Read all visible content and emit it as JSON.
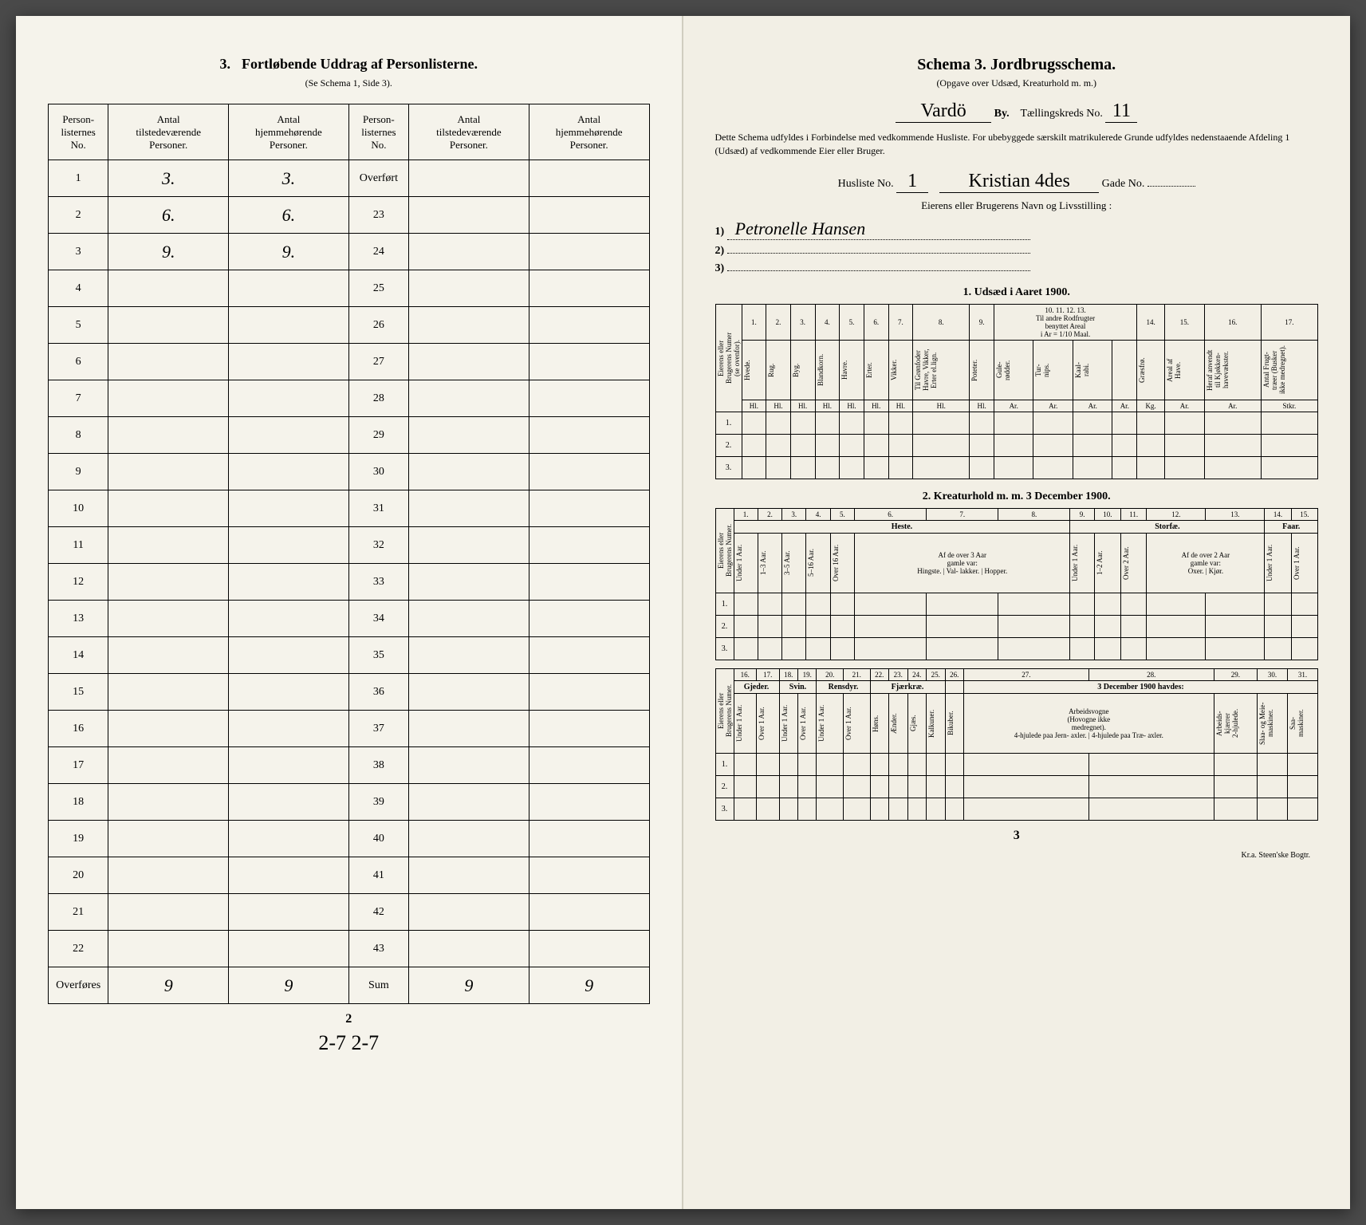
{
  "left": {
    "title_num": "3.",
    "title_text": "Fortløbende Uddrag af Personlisterne.",
    "subtitle": "(Se Schema 1, Side 3).",
    "headers": {
      "col1": "Person-\nlisternes\nNo.",
      "col2": "Antal\ntilstedeværende\nPersoner.",
      "col3": "Antal\nhjemmehørende\nPersoner.",
      "col4": "Person-\nlisternes\nNo.",
      "col5": "Antal\ntilstedeværende\nPersoner.",
      "col6": "Antal\nhjemmehørende\nPersoner."
    },
    "rows_left": [
      {
        "no": "1",
        "a": "3.",
        "b": "3."
      },
      {
        "no": "2",
        "a": "6.",
        "b": "6."
      },
      {
        "no": "3",
        "a": "9.",
        "b": "9."
      },
      {
        "no": "4",
        "a": "",
        "b": ""
      },
      {
        "no": "5",
        "a": "",
        "b": ""
      },
      {
        "no": "6",
        "a": "",
        "b": ""
      },
      {
        "no": "7",
        "a": "",
        "b": ""
      },
      {
        "no": "8",
        "a": "",
        "b": ""
      },
      {
        "no": "9",
        "a": "",
        "b": ""
      },
      {
        "no": "10",
        "a": "",
        "b": ""
      },
      {
        "no": "11",
        "a": "",
        "b": ""
      },
      {
        "no": "12",
        "a": "",
        "b": ""
      },
      {
        "no": "13",
        "a": "",
        "b": ""
      },
      {
        "no": "14",
        "a": "",
        "b": ""
      },
      {
        "no": "15",
        "a": "",
        "b": ""
      },
      {
        "no": "16",
        "a": "",
        "b": ""
      },
      {
        "no": "17",
        "a": "",
        "b": ""
      },
      {
        "no": "18",
        "a": "",
        "b": ""
      },
      {
        "no": "19",
        "a": "",
        "b": ""
      },
      {
        "no": "20",
        "a": "",
        "b": ""
      },
      {
        "no": "21",
        "a": "",
        "b": ""
      },
      {
        "no": "22",
        "a": "",
        "b": ""
      }
    ],
    "overfores_label": "Overføres",
    "overfores_a": "9",
    "overfores_b": "9",
    "right_first": "Overført",
    "rows_right": [
      "23",
      "24",
      "25",
      "26",
      "27",
      "28",
      "29",
      "30",
      "31",
      "32",
      "33",
      "34",
      "35",
      "36",
      "37",
      "38",
      "39",
      "40",
      "41",
      "42",
      "43"
    ],
    "sum_label": "Sum",
    "sum_a": "9",
    "sum_b": "9",
    "page_num": "2",
    "bottom_hw": "2-7   2-7"
  },
  "right": {
    "schema_title": "Schema 3.   Jordbrugsschema.",
    "schema_sub": "(Opgave over Udsæd, Kreaturhold m. m.)",
    "by_value": "Vardö",
    "by_label": "By.",
    "kreds_label": "Tællingskreds No.",
    "kreds_value": "11",
    "instructions": "Dette Schema udfyldes i Forbindelse med vedkommende Husliste. For ubebyggede særskilt matrikulerede Grunde udfyldes nedenstaaende Afdeling 1 (Udsæd) af vedkommende Eier eller Bruger.",
    "husliste_label": "Husliste No.",
    "husliste_value": "1",
    "gade_value": "Kristian 4des",
    "gade_label": "Gade No.",
    "gade_no": "",
    "owner_title": "Eierens eller Brugerens Navn og Livsstilling :",
    "owner1": "Petronelle Hansen",
    "owner2": "",
    "owner3": "",
    "section1_title": "1.   Udsæd i Aaret 1900.",
    "t1": {
      "side": "Eierens eller\nBrugerens Numer\n(se ovenfor).",
      "cols": [
        "1.",
        "2.",
        "3.",
        "4.",
        "5.",
        "6.",
        "7.",
        "8.",
        "9.",
        "10.",
        "11.",
        "12.",
        "13.",
        "14.",
        "15.",
        "16.",
        "17."
      ],
      "names": [
        "Hvede.",
        "Rug.",
        "Byg.",
        "Blandkorn.",
        "Havre.",
        "Erter.",
        "Vikker.",
        "Til Grønfoder\nHavre, Vikker,\nErter el.lign.",
        "Poteter.",
        "Til andre Rodfrugter\nbenyttet Areal\ni Ar = 1/10 Maal.",
        "",
        "",
        "",
        "Græsfrø.",
        "Areal af\nHave.",
        "Heraf anvendt\ntil Kjøkken-\nhavevækster.",
        "Antal Frugt-\ntræer (Busker\nikke medregnet)."
      ],
      "sub10": [
        "Gule-\nrødder.",
        "Tur-\nnips.",
        "Kaal-\nrabi."
      ],
      "units": [
        "Hl.",
        "Hl.",
        "Hl.",
        "Hl.",
        "Hl.",
        "Hl.",
        "Hl.",
        "Hl.",
        "Hl.",
        "Ar.",
        "Ar.",
        "Ar.",
        "Ar.",
        "Kg.",
        "Ar.",
        "Ar.",
        "Stkr."
      ],
      "rows": [
        "1.",
        "2.",
        "3."
      ]
    },
    "section2_title": "2.   Kreaturhold m. m. 3 December 1900.",
    "t2": {
      "side": "Eierens eller\nBrugerens Numer.",
      "cols": [
        "1.",
        "2.",
        "3.",
        "4.",
        "5.",
        "6.",
        "7.",
        "8.",
        "9.",
        "10.",
        "11.",
        "12.",
        "13.",
        "14.",
        "15."
      ],
      "group_heste": "Heste.",
      "group_storfae": "Storfæ.",
      "group_faar": "Faar.",
      "names": [
        "Under 1 Aar.",
        "1–3 Aar.",
        "3–5 Aar.",
        "5–16 Aar.",
        "Over 16 Aar.",
        "Af de over 3 Aar\ngamle var:",
        "",
        "",
        "Under 1 Aar.",
        "1–2 Aar.",
        "Over 2 Aar.",
        "Af de over 2 Aar\ngamle var:",
        "",
        "Under 1 Aar.",
        "Over 1 Aar."
      ],
      "sub6": [
        "Hingste.",
        "Val-\nlakker.",
        "Hopper."
      ],
      "sub12": [
        "Oxer.",
        "Kjør."
      ],
      "rows": [
        "1.",
        "2.",
        "3."
      ]
    },
    "t3": {
      "side": "Eierens eller\nBrugerens Numer.",
      "cols": [
        "16.",
        "17.",
        "18.",
        "19.",
        "20.",
        "21.",
        "22.",
        "23.",
        "24.",
        "25.",
        "26.",
        "27.",
        "28.",
        "29.",
        "30.",
        "31."
      ],
      "group_gjeder": "Gjeder.",
      "group_svin": "Svin.",
      "group_rensdyr": "Rensdyr.",
      "group_fjaerkrae": "Fjærkræ.",
      "group_dec": "3 December 1900 havdes:",
      "names": [
        "Under 1 Aar.",
        "Over 1 Aar.",
        "Under 1 Aar.",
        "Over 1 Aar.",
        "Under 1 Aar.",
        "Over 1 Aar.",
        "Høns.",
        "Ænder.",
        "Gjæs.",
        "Kalkuner.",
        "Bikuber.",
        "Arbeidsvogne\n(Hovogne ikke\nmedregnet).",
        "",
        "Arbeids-\nkjærrer\n2-hjulede.",
        "Slaa- og Meie-\nmaskiner.",
        "Saa-\nmaskiner."
      ],
      "sub27": [
        "4-hjulede\npaa Jern-\naxler.",
        "4-hjulede\npaa Træ-\naxler."
      ],
      "rows": [
        "1.",
        "2.",
        "3."
      ]
    },
    "page_num": "3",
    "printer": "Kr.a.   Steen'ske Bogtr."
  }
}
